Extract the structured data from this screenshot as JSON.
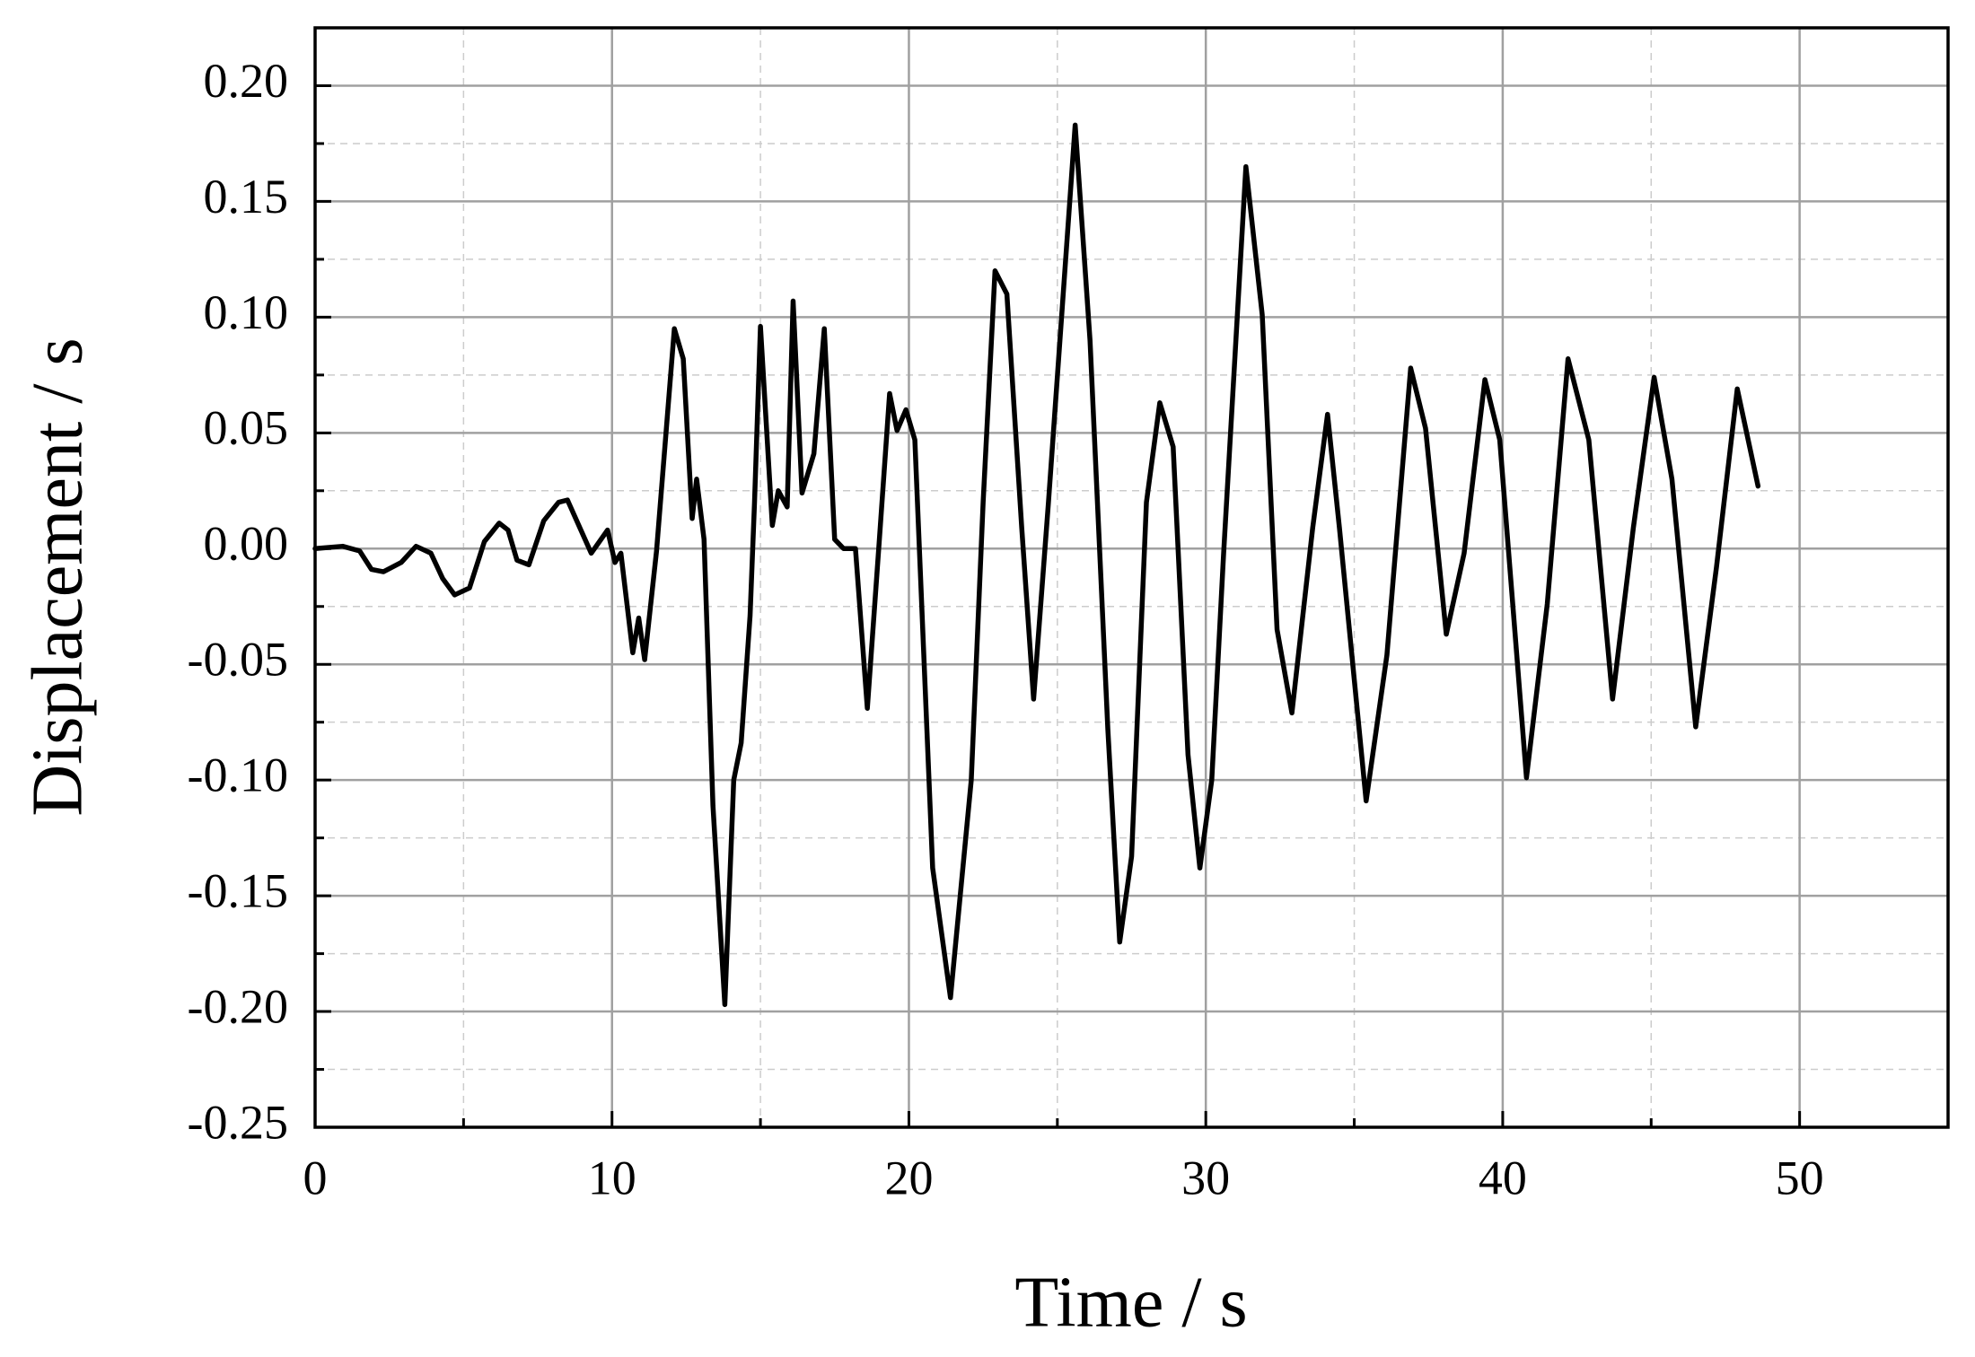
{
  "chart_data": {
    "type": "line",
    "x_label": "Time / s",
    "y_label": "Displacement / s",
    "xlim": [
      0,
      55
    ],
    "ylim": [
      -0.25,
      0.225
    ],
    "xticks": [
      0,
      10,
      20,
      30,
      40,
      50
    ],
    "yticks": [
      {
        "value": -0.25,
        "label": "-0.25"
      },
      {
        "value": -0.2,
        "label": "-0.20"
      },
      {
        "value": -0.15,
        "label": "-0.15"
      },
      {
        "value": -0.1,
        "label": "-0.10"
      },
      {
        "value": -0.05,
        "label": "-0.05"
      },
      {
        "value": 0,
        "label": "0.00"
      },
      {
        "value": 0.05,
        "label": "0.05"
      },
      {
        "value": 0.1,
        "label": "0.10"
      },
      {
        "value": 0.15,
        "label": "0.15"
      },
      {
        "value": 0.2,
        "label": "0.20"
      }
    ],
    "grid": true,
    "x": [
      0,
      0.93,
      1.5,
      1.9,
      2.3,
      2.9,
      3.4,
      3.9,
      4.3,
      4.7,
      5.2,
      5.7,
      6.2,
      6.5,
      6.8,
      7.2,
      7.7,
      8.2,
      8.5,
      9.3,
      9.85,
      10.1,
      10.3,
      10.7,
      10.9,
      11.1,
      11.5,
      12.1,
      12.4,
      12.7,
      12.85,
      13.1,
      13.4,
      13.8,
      14.1,
      14.35,
      14.65,
      14.8,
      15.0,
      15.4,
      15.6,
      15.9,
      16.1,
      16.4,
      16.8,
      17.15,
      17.5,
      17.8,
      18.2,
      18.6,
      19.0,
      19.35,
      19.6,
      19.9,
      20.2,
      20.8,
      21.4,
      22.1,
      22.5,
      22.9,
      23.3,
      23.8,
      24.2,
      24.7,
      25.6,
      26.1,
      26.7,
      27.1,
      27.5,
      28.0,
      28.45,
      28.9,
      29.4,
      29.8,
      30.2,
      30.6,
      31.35,
      31.9,
      32.4,
      32.9,
      33.6,
      34.1,
      34.5,
      35.4,
      36.1,
      36.9,
      37.4,
      38.1,
      38.7,
      39.4,
      39.9,
      40.8,
      41.5,
      42.2,
      42.9,
      43.7,
      44.4,
      45.1,
      45.7,
      46.5,
      47.2,
      47.9,
      48.6
    ],
    "series": [
      {
        "color": "#000000",
        "values": [
          0,
          0.001,
          -0.001,
          -0.009,
          -0.01,
          -0.006,
          0.001,
          -0.002,
          -0.013,
          -0.02,
          -0.017,
          0.003,
          0.011,
          0.008,
          -0.005,
          -0.007,
          0.012,
          0.02,
          0.021,
          -0.002,
          0.008,
          -0.006,
          -0.002,
          -0.045,
          -0.03,
          -0.048,
          -0.001,
          0.095,
          0.082,
          0.013,
          0.03,
          0.004,
          -0.111,
          -0.197,
          -0.1,
          -0.084,
          -0.029,
          0.02,
          0.096,
          0.01,
          0.025,
          0.018,
          0.107,
          0.024,
          0.041,
          0.095,
          0.004,
          0,
          0,
          -0.069,
          0.003,
          0.067,
          0.051,
          0.06,
          0.047,
          -0.138,
          -0.194,
          -0.1,
          0.02,
          0.12,
          0.11,
          0.009,
          -0.065,
          0.02,
          0.183,
          0.09,
          -0.078,
          -0.17,
          -0.133,
          0.02,
          0.063,
          0.044,
          -0.089,
          -0.138,
          -0.1,
          -0.002,
          0.165,
          0.101,
          -0.035,
          -0.071,
          0.009,
          0.058,
          0.009,
          -0.109,
          -0.046,
          0.078,
          0.052,
          -0.037,
          -0.002,
          0.073,
          0.047,
          -0.099,
          -0.024,
          0.082,
          0.047,
          -0.065,
          0.009,
          0.074,
          0.03,
          -0.077,
          -0.008,
          0.069,
          0.027
        ]
      }
    ]
  }
}
